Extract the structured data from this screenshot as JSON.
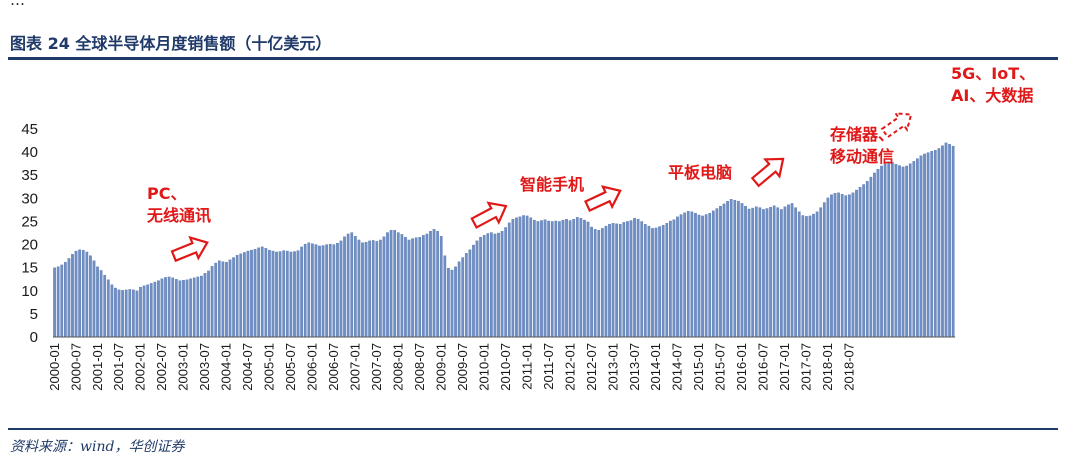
{
  "header_fragment": "…",
  "figure": {
    "title": "图表 24 全球半导体月度销售额（十亿美元）",
    "source": "资料来源：wind，华创证券"
  },
  "colors": {
    "bar": "#6f8fc4",
    "bar_edge": "#4e6fa8",
    "accent": "#e01818",
    "title": "#1f3a68"
  },
  "chart_data": {
    "type": "bar",
    "title": "全球半导体月度销售额（十亿美元）",
    "xlabel": "",
    "ylabel": "",
    "ylim": [
      0,
      45
    ],
    "yticks": [
      0,
      5,
      10,
      15,
      20,
      25,
      30,
      35,
      40,
      45
    ],
    "grid": false,
    "legend": "none",
    "categories_start": "2000-01",
    "xtick_labels": [
      "2000-01",
      "2000-07",
      "2001-01",
      "2001-07",
      "2002-01",
      "2002-07",
      "2003-01",
      "2003-07",
      "2004-01",
      "2004-07",
      "2005-01",
      "2005-07",
      "2006-01",
      "2006-07",
      "2007-01",
      "2007-07",
      "2008-01",
      "2008-07",
      "2009-01",
      "2009-07",
      "2010-01",
      "2010-07",
      "2011-01",
      "2011-07",
      "2012-01",
      "2012-07",
      "2013-01",
      "2013-07",
      "2014-01",
      "2014-07",
      "2015-01",
      "2015-07",
      "2016-01",
      "2016-07",
      "2017-01",
      "2017-07",
      "2018-01",
      "2018-07"
    ],
    "values": [
      15.0,
      15.2,
      15.6,
      16.2,
      17.0,
      17.9,
      18.6,
      18.9,
      18.8,
      18.4,
      17.6,
      16.5,
      15.2,
      14.4,
      13.4,
      12.4,
      11.3,
      10.6,
      10.2,
      10.1,
      10.2,
      10.3,
      10.2,
      10.0,
      10.8,
      11.1,
      11.3,
      11.6,
      11.9,
      12.2,
      12.6,
      12.9,
      13.0,
      12.8,
      12.5,
      12.2,
      12.3,
      12.4,
      12.6,
      12.8,
      13.0,
      13.2,
      13.8,
      14.3,
      15.3,
      16.0,
      16.5,
      16.3,
      16.2,
      16.7,
      17.2,
      17.7,
      18.0,
      18.3,
      18.6,
      18.8,
      19.0,
      19.3,
      19.5,
      19.2,
      18.8,
      18.6,
      18.4,
      18.5,
      18.7,
      18.6,
      18.4,
      18.5,
      18.7,
      19.5,
      20.1,
      20.4,
      20.2,
      20.0,
      19.7,
      19.8,
      20.0,
      20.1,
      20.0,
      20.3,
      20.8,
      21.7,
      22.3,
      22.6,
      21.8,
      21.0,
      20.4,
      20.5,
      20.8,
      20.9,
      20.7,
      21.0,
      21.7,
      22.6,
      23.1,
      23.1,
      22.6,
      22.2,
      21.6,
      21.0,
      21.3,
      21.5,
      21.6,
      22.0,
      22.3,
      22.9,
      23.3,
      22.9,
      21.8,
      17.6,
      14.9,
      14.5,
      15.2,
      16.3,
      17.2,
      18.1,
      18.9,
      19.9,
      20.8,
      21.6,
      22.0,
      22.4,
      22.6,
      22.3,
      22.5,
      22.9,
      23.7,
      24.7,
      25.5,
      25.8,
      26.0,
      26.3,
      26.2,
      25.8,
      25.3,
      25.0,
      25.2,
      25.4,
      25.1,
      25.0,
      25.1,
      25.0,
      25.3,
      25.5,
      25.2,
      25.5,
      25.9,
      25.7,
      25.3,
      24.9,
      23.8,
      23.3,
      23.1,
      23.5,
      24.0,
      24.4,
      24.6,
      24.5,
      24.4,
      24.8,
      25.0,
      25.2,
      25.7,
      25.5,
      25.0,
      24.4,
      24.0,
      23.5,
      23.6,
      23.9,
      24.2,
      24.6,
      25.1,
      25.4,
      26.0,
      26.5,
      26.9,
      27.2,
      27.1,
      26.8,
      26.4,
      26.2,
      26.5,
      26.8,
      27.3,
      27.8,
      28.3,
      28.8,
      29.4,
      29.8,
      29.6,
      29.4,
      28.9,
      28.3,
      27.7,
      27.9,
      28.2,
      28.0,
      27.6,
      27.8,
      28.1,
      28.4,
      28.0,
      27.6,
      28.2,
      28.6,
      28.9,
      28.0,
      27.1,
      26.3,
      26.1,
      26.2,
      26.6,
      27.1,
      28.0,
      29.1,
      30.1,
      30.8,
      31.1,
      31.2,
      30.9,
      30.6,
      30.8,
      31.2,
      31.8,
      32.4,
      33.0,
      33.7,
      34.6,
      35.5,
      36.3,
      37.0,
      37.5,
      37.9,
      37.8,
      37.4,
      37.1,
      36.8,
      37.0,
      37.5,
      38.0,
      38.6,
      39.2,
      39.6,
      39.9,
      40.2,
      40.4,
      40.8,
      41.4,
      42.0,
      41.7,
      41.3
    ]
  },
  "annotations": [
    {
      "id": "pc",
      "lines": [
        "PC、",
        "无线通讯"
      ],
      "value_level": 22,
      "month": 36
    },
    {
      "id": "smartphone",
      "lines": [
        "智能手机"
      ],
      "value_level": 32,
      "month": 121
    },
    {
      "id": "tablet",
      "lines": [
        "平板电脑"
      ],
      "value_level": 34.6,
      "month": 151
    },
    {
      "id": "storage",
      "lines": [
        "存储器、",
        "移动通信"
      ],
      "value_level": 38,
      "month": 194
    },
    {
      "id": "5g",
      "lines": [
        "5G、IoT、",
        "AI、大数据"
      ],
      "value_level": 51,
      "month": 224
    }
  ]
}
